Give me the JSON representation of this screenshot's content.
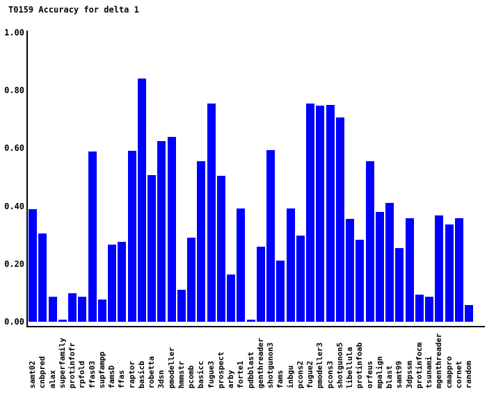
{
  "title": "T0159 Accuracy for delta 1",
  "chart_data": {
    "type": "bar",
    "title": "T0159 Accuracy for delta 1",
    "xlabel": "",
    "ylabel": "",
    "ylim": [
      0.0,
      1.0
    ],
    "grid": false,
    "legend": "none",
    "bar_color": "#0000ff",
    "axis_color": "#000000",
    "text_color": "#000000",
    "background_color": "#ffffff",
    "yticks": [
      "1.00",
      "0.80",
      "0.60",
      "0.40",
      "0.20",
      "0.00"
    ],
    "ytick_values": [
      1.0,
      0.8,
      0.6,
      0.4,
      0.2,
      0.0
    ],
    "categories": [
      "samt02",
      "cnbpred",
      "alax",
      "superfamily",
      "protinfofr",
      "rpfold",
      "ffas03",
      "supfampp",
      "famsD",
      "ffas",
      "raptor",
      "basicb",
      "robetta",
      "3dsn",
      "pmodeller",
      "hmmstr",
      "pcomb",
      "basicc",
      "fugue3",
      "prospect",
      "arby",
      "forte1",
      "pdbblast",
      "genthreader",
      "shotgunon3",
      "fams",
      "inbgu",
      "pcons2",
      "fugue2",
      "pmodeller3",
      "pcons3",
      "shotgunon5",
      "libellula",
      "protinfoab",
      "orfeus",
      "mpalign",
      "blast",
      "samt99",
      "3dpssm",
      "protinfocm",
      "tsunami",
      "mgenthreader",
      "cmappro",
      "cornet",
      "random"
    ],
    "values": [
      0.39,
      0.305,
      0.087,
      0.008,
      0.099,
      0.087,
      0.59,
      0.077,
      0.267,
      0.277,
      0.592,
      0.841,
      0.508,
      0.624,
      0.639,
      0.111,
      0.291,
      0.555,
      0.754,
      0.505,
      0.163,
      0.392,
      0.007,
      0.26,
      0.594,
      0.212,
      0.392,
      0.298,
      0.754,
      0.748,
      0.75,
      0.706,
      0.355,
      0.283,
      0.555,
      0.379,
      0.411,
      0.256,
      0.357,
      0.094,
      0.087,
      0.367,
      0.337,
      0.357,
      0.057
    ]
  }
}
